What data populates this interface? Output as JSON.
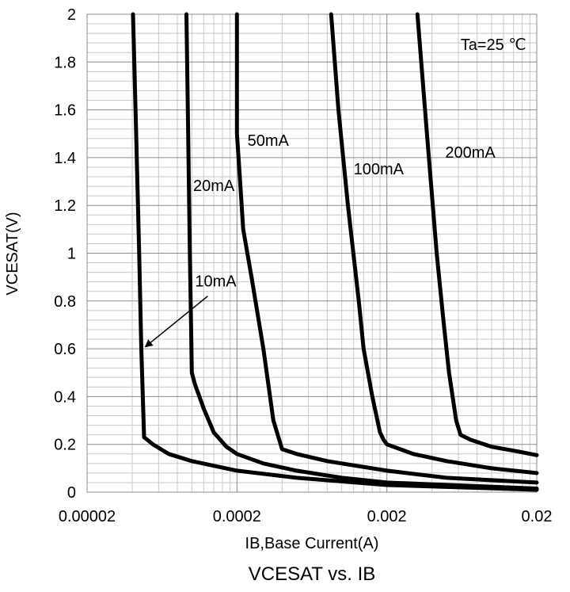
{
  "chart_data": {
    "type": "line",
    "title": "VCESAT vs. IB",
    "xlabel": "IB,Base Current(A)",
    "ylabel": "VCESAT(V)",
    "x_scale": "log",
    "xlim": [
      2e-05,
      0.02
    ],
    "ylim": [
      0,
      2
    ],
    "x_ticks": [
      {
        "value": 2e-05,
        "label": "0.00002"
      },
      {
        "value": 0.0002,
        "label": "0.0002"
      },
      {
        "value": 0.002,
        "label": "0.002"
      },
      {
        "value": 0.02,
        "label": "0.02"
      }
    ],
    "y_ticks": [
      {
        "value": 0,
        "label": "0"
      },
      {
        "value": 0.2,
        "label": "0.2"
      },
      {
        "value": 0.4,
        "label": "0.4"
      },
      {
        "value": 0.6,
        "label": "0.6"
      },
      {
        "value": 0.8,
        "label": "0.8"
      },
      {
        "value": 1,
        "label": "1"
      },
      {
        "value": 1.2,
        "label": "1.2"
      },
      {
        "value": 1.4,
        "label": "1.4"
      },
      {
        "value": 1.6,
        "label": "1.6"
      },
      {
        "value": 1.8,
        "label": "1.8"
      },
      {
        "value": 2,
        "label": "2"
      }
    ],
    "grid": true,
    "series": [
      {
        "name": "10mA",
        "x": [
          4.05e-05,
          4.25e-05,
          4.45e-05,
          4.6e-05,
          4.8e-05,
          5.5e-05,
          7e-05,
          0.0001,
          0.0002,
          0.0005,
          0.002,
          0.02
        ],
        "y": [
          2.0,
          1.5,
          1.0,
          0.6,
          0.23,
          0.2,
          0.16,
          0.13,
          0.09,
          0.06,
          0.03,
          0.01
        ]
      },
      {
        "name": "20mA",
        "x": [
          9.2e-05,
          9.45e-05,
          9.7e-05,
          9.85e-05,
          0.0001,
          0.000105,
          0.00012,
          0.00014,
          0.00017,
          0.0002,
          0.0003,
          0.0005,
          0.001,
          0.002,
          0.02
        ],
        "y": [
          2.0,
          1.5,
          1.0,
          0.75,
          0.5,
          0.45,
          0.35,
          0.25,
          0.19,
          0.16,
          0.12,
          0.09,
          0.06,
          0.04,
          0.015
        ]
      },
      {
        "name": "50mA",
        "x": [
          0.0002,
          0.0002,
          0.00021,
          0.00022,
          0.00025,
          0.0003,
          0.00035,
          0.0004,
          0.0005,
          0.0008,
          0.001,
          0.002,
          0.005,
          0.02
        ],
        "y": [
          2.0,
          1.5,
          1.3,
          1.1,
          0.9,
          0.6,
          0.3,
          0.18,
          0.16,
          0.13,
          0.12,
          0.09,
          0.06,
          0.04
        ]
      },
      {
        "name": "100mA",
        "x": [
          0.00085,
          0.00095,
          0.0011,
          0.0013,
          0.0014,
          0.0016,
          0.0018,
          0.0019,
          0.002,
          0.003,
          0.005,
          0.01,
          0.02
        ],
        "y": [
          2.0,
          1.6,
          1.2,
          0.8,
          0.6,
          0.4,
          0.25,
          0.22,
          0.2,
          0.16,
          0.13,
          0.1,
          0.08
        ]
      },
      {
        "name": "200mA",
        "x": [
          0.0032,
          0.0037,
          0.0043,
          0.0048,
          0.0052,
          0.0058,
          0.0062,
          0.0072,
          0.01,
          0.015,
          0.02
        ],
        "y": [
          2.0,
          1.5,
          1.0,
          0.7,
          0.5,
          0.3,
          0.24,
          0.22,
          0.19,
          0.17,
          0.155
        ]
      }
    ],
    "annotations": [
      {
        "text": "Ta=25 ℃",
        "x": 0.0062,
        "y": 1.85
      },
      {
        "text": "10mA",
        "x": 0.000105,
        "y": 0.86,
        "arrow_to": {
          "x": 4.7e-05,
          "y": 0.6
        }
      },
      {
        "text": "20mA",
        "x": 0.000102,
        "y": 1.26
      },
      {
        "text": "50mA",
        "x": 0.000235,
        "y": 1.45
      },
      {
        "text": "100mA",
        "x": 0.0012,
        "y": 1.33
      },
      {
        "text": "200mA",
        "x": 0.0049,
        "y": 1.4
      }
    ]
  }
}
